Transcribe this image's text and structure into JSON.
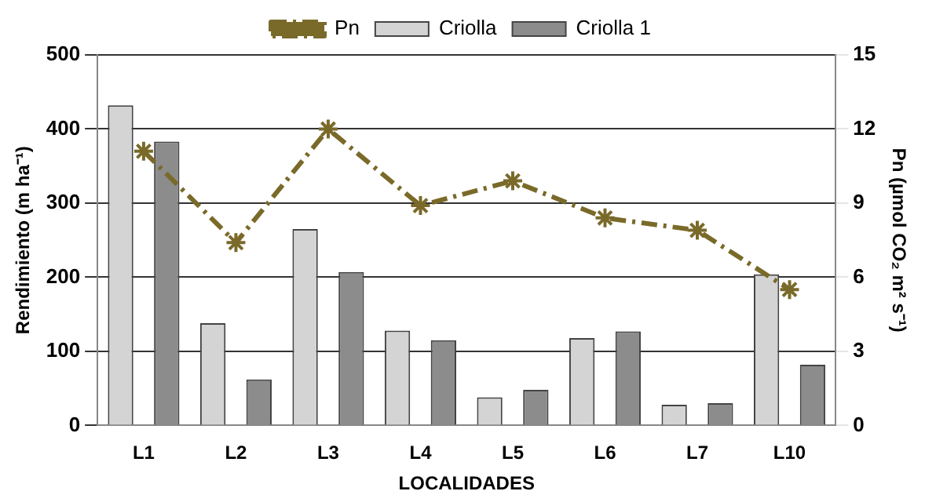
{
  "chart_data": {
    "type": "bar",
    "xlabel": "LOCALIDADES",
    "ylabel": "Rendimiento (m ha⁻¹)",
    "y2label": "Pn (µmol CO₂ m² s⁻¹)",
    "categories": [
      "L1",
      "L2",
      "L3",
      "L4",
      "L5",
      "L6",
      "L7",
      "L10"
    ],
    "series": [
      {
        "name": "Criolla",
        "color": "#d4d4d4",
        "values": [
          432,
          138,
          265,
          128,
          38,
          118,
          28,
          204
        ]
      },
      {
        "name": "Criolla 1",
        "color": "#8c8c8c",
        "values": [
          383,
          62,
          207,
          115,
          48,
          127,
          30,
          82
        ]
      },
      {
        "name": "Pn",
        "type": "line",
        "axis": "y2",
        "color": "#7a6a2a",
        "marker": "cross",
        "line_style": "dashed",
        "values": [
          11.1,
          7.4,
          12,
          8.9,
          9.9,
          8.4,
          7.9,
          5.5
        ]
      }
    ],
    "ylim": [
      0,
      500
    ],
    "yticks": [
      0,
      100,
      200,
      300,
      400,
      500
    ],
    "y2lim": [
      0,
      15
    ],
    "y2ticks": [
      0,
      3,
      6,
      9,
      12,
      15
    ],
    "grid": "y",
    "legend": "top"
  }
}
